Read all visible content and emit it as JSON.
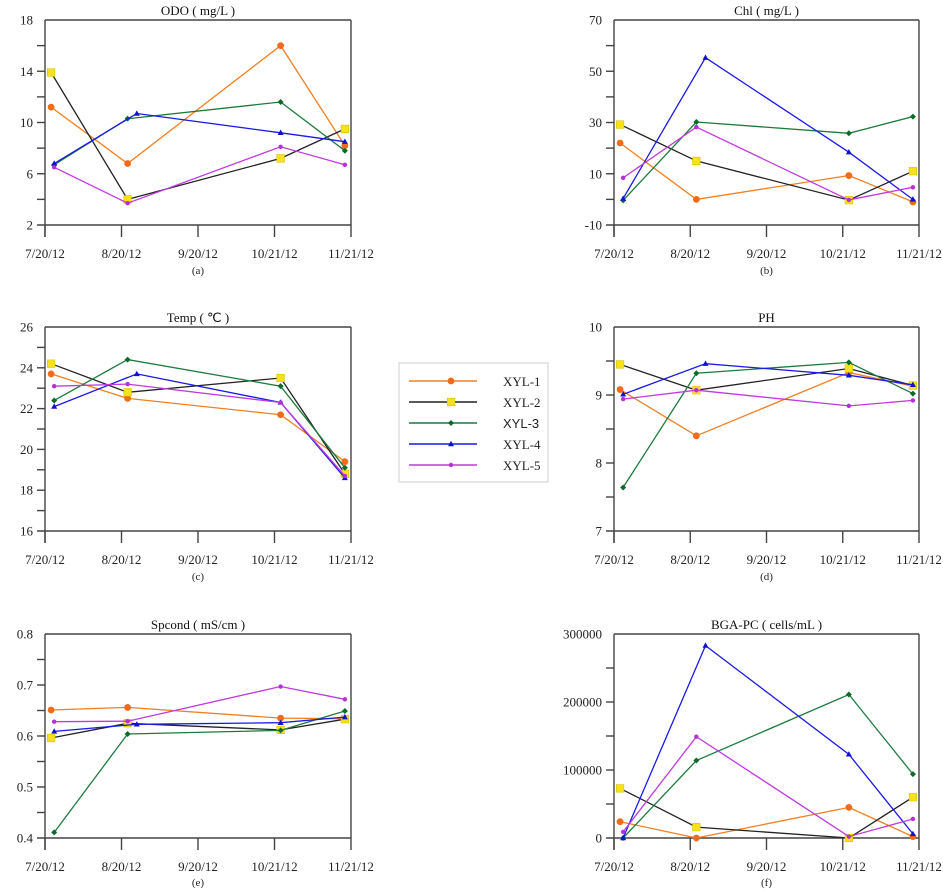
{
  "legend": {
    "position": "center",
    "entries": [
      {
        "name": "XYL-1",
        "color": "#f27f22",
        "marker": "circle",
        "marker_color": "#f26b1b"
      },
      {
        "name": "XYL-2",
        "color": "#222222",
        "marker": "square",
        "marker_color": "#f7e21a"
      },
      {
        "name": "XYL-3",
        "color": "#1e7a3c",
        "marker": "diamond",
        "marker_color": "#0d6b2a"
      },
      {
        "name": "XYL-4",
        "color": "#1a1ae6",
        "marker": "triangle",
        "marker_color": "#1010d0"
      },
      {
        "name": "XYL-5",
        "color": "#c03ae0",
        "marker": "star",
        "marker_color": "#b52fd6"
      }
    ]
  },
  "chart_data": [
    {
      "type": "line",
      "id": "a",
      "title": "ODO ( mg/L )",
      "panel_label": "(a)",
      "xlabel": "",
      "ylabel": "",
      "x_ticks": [
        "7/20/12",
        "8/20/12",
        "9/20/12",
        "10/21/12",
        "11/21/12"
      ],
      "ylim": [
        2,
        18
      ],
      "y_ticks": [
        2,
        6,
        10,
        14,
        18
      ],
      "y_minor_step": 2,
      "series": [
        {
          "name": "XYL-1",
          "x": [
            0.02,
            0.27,
            0.77,
            0.98
          ],
          "values": [
            11.2,
            6.8,
            16.0,
            8.2
          ]
        },
        {
          "name": "XYL-2",
          "x": [
            0.02,
            0.27,
            0.77,
            0.98
          ],
          "values": [
            13.9,
            4.0,
            7.2,
            9.5
          ]
        },
        {
          "name": "XYL-3",
          "x": [
            0.03,
            0.27,
            0.77,
            0.98
          ],
          "values": [
            6.7,
            10.3,
            11.6,
            7.8
          ]
        },
        {
          "name": "XYL-4",
          "x": [
            0.03,
            0.3,
            0.77,
            0.98
          ],
          "values": [
            6.8,
            10.7,
            9.2,
            8.5
          ]
        },
        {
          "name": "XYL-5",
          "x": [
            0.03,
            0.27,
            0.77,
            0.98
          ],
          "values": [
            6.5,
            3.7,
            8.1,
            6.7
          ]
        }
      ]
    },
    {
      "type": "line",
      "id": "b",
      "title": "Chl ( mg/L )",
      "panel_label": "(b)",
      "xlabel": "",
      "ylabel": "",
      "x_ticks": [
        "7/20/12",
        "8/20/12",
        "9/20/12",
        "10/21/12",
        "11/21/12"
      ],
      "ylim": [
        -10,
        70
      ],
      "y_ticks": [
        -10,
        10,
        30,
        50,
        70
      ],
      "y_minor_step": 10,
      "series": [
        {
          "name": "XYL-1",
          "x": [
            0.02,
            0.27,
            0.77,
            0.98
          ],
          "values": [
            22,
            0,
            9.3,
            -1
          ]
        },
        {
          "name": "XYL-2",
          "x": [
            0.02,
            0.27,
            0.77,
            0.98
          ],
          "values": [
            29.2,
            15,
            -0.3,
            11
          ]
        },
        {
          "name": "XYL-3",
          "x": [
            0.03,
            0.27,
            0.77,
            0.98
          ],
          "values": [
            -0.4,
            30.2,
            25.8,
            32.3
          ]
        },
        {
          "name": "XYL-4",
          "x": [
            0.03,
            0.3,
            0.77,
            0.98
          ],
          "values": [
            0.3,
            55.3,
            18.4,
            0
          ]
        },
        {
          "name": "XYL-5",
          "x": [
            0.03,
            0.27,
            0.77,
            0.98
          ],
          "values": [
            8.4,
            28.2,
            -0.2,
            4.7
          ]
        }
      ]
    },
    {
      "type": "line",
      "id": "c",
      "title": "Temp ( ℃ )",
      "panel_label": "(c)",
      "xlabel": "",
      "ylabel": "",
      "x_ticks": [
        "7/20/12",
        "8/20/12",
        "9/20/12",
        "10/21/12",
        "11/21/12"
      ],
      "ylim": [
        16,
        26
      ],
      "y_ticks": [
        16,
        18,
        20,
        22,
        24,
        26
      ],
      "y_minor_step": 1,
      "series": [
        {
          "name": "XYL-1",
          "x": [
            0.02,
            0.27,
            0.77,
            0.98
          ],
          "values": [
            23.7,
            22.5,
            21.7,
            19.4
          ]
        },
        {
          "name": "XYL-2",
          "x": [
            0.02,
            0.27,
            0.77,
            0.98
          ],
          "values": [
            24.2,
            22.8,
            23.5,
            18.8
          ]
        },
        {
          "name": "XYL-3",
          "x": [
            0.03,
            0.27,
            0.77,
            0.98
          ],
          "values": [
            22.4,
            24.4,
            23.1,
            19.1
          ]
        },
        {
          "name": "XYL-4",
          "x": [
            0.03,
            0.3,
            0.77,
            0.98
          ],
          "values": [
            22.1,
            23.7,
            22.3,
            18.6
          ]
        },
        {
          "name": "XYL-5",
          "x": [
            0.03,
            0.27,
            0.77,
            0.98
          ],
          "values": [
            23.1,
            23.2,
            22.3,
            18.7
          ]
        }
      ]
    },
    {
      "type": "line",
      "id": "d",
      "title": "PH",
      "panel_label": "(d)",
      "xlabel": "",
      "ylabel": "",
      "x_ticks": [
        "7/20/12",
        "8/20/12",
        "9/20/12",
        "10/21/12",
        "11/21/12"
      ],
      "ylim": [
        7,
        10
      ],
      "y_ticks": [
        7,
        8,
        9,
        10
      ],
      "y_minor_step": 0.5,
      "series": [
        {
          "name": "XYL-1",
          "x": [
            0.02,
            0.27,
            0.77,
            0.98
          ],
          "values": [
            9.08,
            8.4,
            9.33,
            9.13
          ]
        },
        {
          "name": "XYL-2",
          "x": [
            0.02,
            0.27,
            0.77,
            0.98
          ],
          "values": [
            9.45,
            9.07,
            9.39,
            9.14
          ]
        },
        {
          "name": "XYL-3",
          "x": [
            0.03,
            0.27,
            0.77,
            0.98
          ],
          "values": [
            7.64,
            9.32,
            9.48,
            9.02
          ]
        },
        {
          "name": "XYL-4",
          "x": [
            0.03,
            0.3,
            0.77,
            0.98
          ],
          "values": [
            9.01,
            9.46,
            9.29,
            9.15
          ]
        },
        {
          "name": "XYL-5",
          "x": [
            0.03,
            0.27,
            0.77,
            0.98
          ],
          "values": [
            8.94,
            9.07,
            8.84,
            8.92
          ]
        }
      ]
    },
    {
      "type": "line",
      "id": "e",
      "title": "Spcond ( mS/cm )",
      "panel_label": "(e)",
      "xlabel": "",
      "ylabel": "",
      "x_ticks": [
        "7/20/12",
        "8/20/12",
        "9/20/12",
        "10/21/12",
        "11/21/12"
      ],
      "ylim": [
        0.4,
        0.8
      ],
      "y_ticks": [
        0.4,
        0.5,
        0.6,
        0.7,
        0.8
      ],
      "y_minor_step": 0.05,
      "series": [
        {
          "name": "XYL-1",
          "x": [
            0.02,
            0.27,
            0.77,
            0.98
          ],
          "values": [
            0.651,
            0.656,
            0.635,
            0.634
          ]
        },
        {
          "name": "XYL-2",
          "x": [
            0.02,
            0.27,
            0.77,
            0.98
          ],
          "values": [
            0.596,
            0.625,
            0.612,
            0.633
          ]
        },
        {
          "name": "XYL-3",
          "x": [
            0.03,
            0.27,
            0.77,
            0.98
          ],
          "values": [
            0.411,
            0.604,
            0.611,
            0.649
          ]
        },
        {
          "name": "XYL-4",
          "x": [
            0.03,
            0.3,
            0.77,
            0.98
          ],
          "values": [
            0.609,
            0.623,
            0.626,
            0.637
          ]
        },
        {
          "name": "XYL-5",
          "x": [
            0.03,
            0.27,
            0.77,
            0.98
          ],
          "values": [
            0.628,
            0.629,
            0.697,
            0.672
          ]
        }
      ]
    },
    {
      "type": "line",
      "id": "f",
      "title": "BGA-PC ( cells/mL )",
      "panel_label": "(f)",
      "xlabel": "",
      "ylabel": "",
      "x_ticks": [
        "7/20/12",
        "8/20/12",
        "9/20/12",
        "10/21/12",
        "11/21/12"
      ],
      "ylim": [
        0,
        300000
      ],
      "y_ticks": [
        0,
        100000,
        200000,
        300000
      ],
      "y_minor_step": 50000,
      "series": [
        {
          "name": "XYL-1",
          "x": [
            0.02,
            0.27,
            0.77,
            0.98
          ],
          "values": [
            24000,
            0,
            45000,
            2000
          ]
        },
        {
          "name": "XYL-2",
          "x": [
            0.02,
            0.27,
            0.77,
            0.98
          ],
          "values": [
            73000,
            16000,
            0,
            60000
          ]
        },
        {
          "name": "XYL-3",
          "x": [
            0.03,
            0.27,
            0.77,
            0.98
          ],
          "values": [
            0,
            114000,
            211000,
            94000
          ]
        },
        {
          "name": "XYL-4",
          "x": [
            0.03,
            0.3,
            0.77,
            0.98
          ],
          "values": [
            0,
            283000,
            123000,
            6000
          ]
        },
        {
          "name": "XYL-5",
          "x": [
            0.03,
            0.27,
            0.77,
            0.98
          ],
          "values": [
            9000,
            149000,
            2000,
            28000
          ]
        }
      ]
    }
  ]
}
